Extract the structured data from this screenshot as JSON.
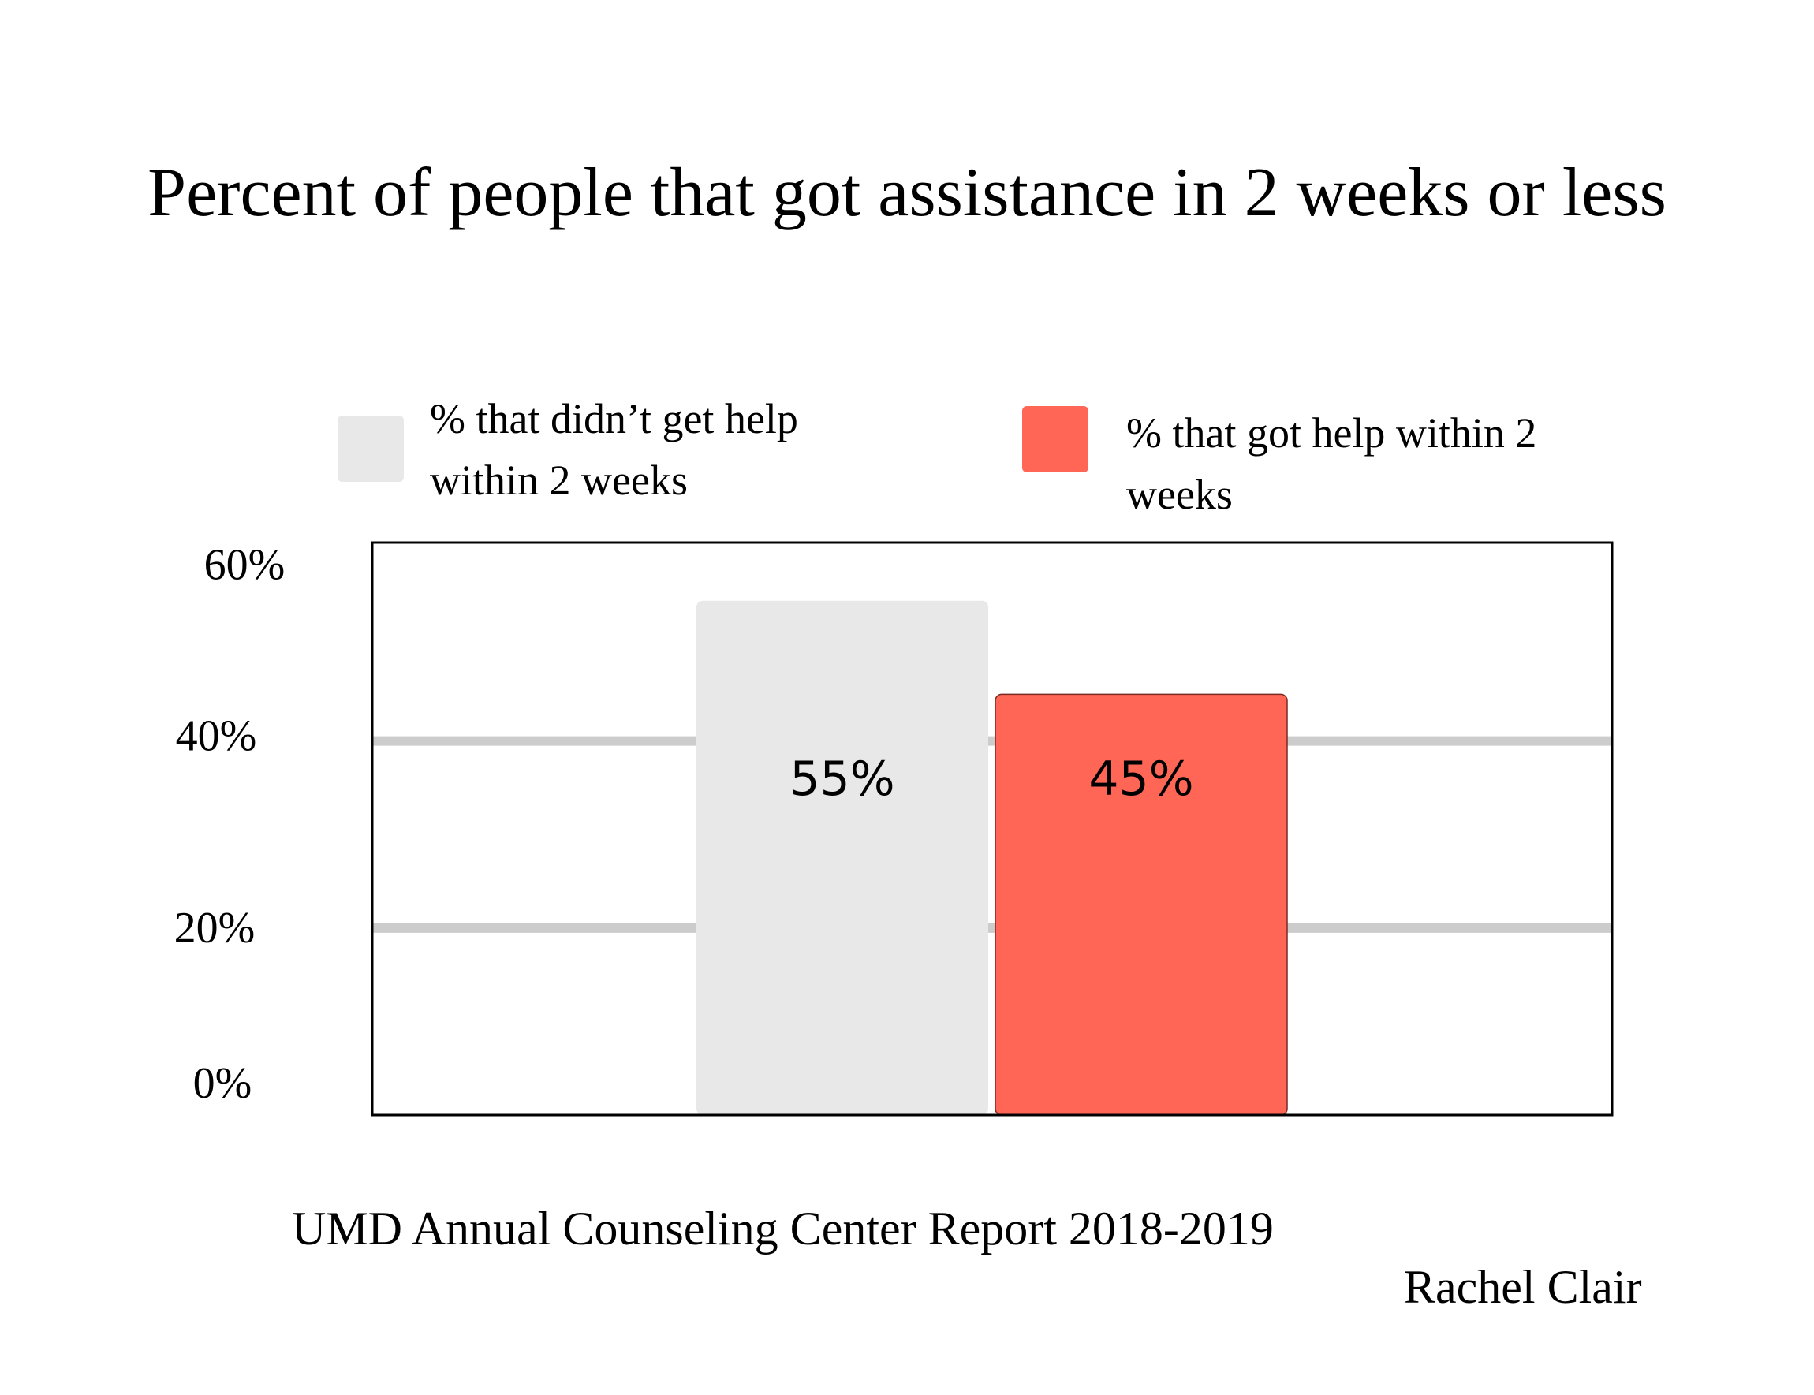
{
  "chart_data": {
    "type": "bar",
    "title": "Percent of people that got assistance in 2 weeks or less",
    "series": [
      {
        "name": "% that didn’t get help within 2 weeks",
        "value": 55,
        "label": "55%",
        "color": "#e8e8e8"
      },
      {
        "name": "% that got help within 2 weeks",
        "value": 45,
        "label": "45%",
        "color": "#ff6655"
      }
    ],
    "yticks": [
      {
        "value": 0,
        "label": "0%"
      },
      {
        "value": 20,
        "label": "20%"
      },
      {
        "value": 40,
        "label": "40%"
      },
      {
        "value": 60,
        "label": "60%"
      }
    ],
    "ylim": [
      0,
      60
    ],
    "gridlines": [
      20,
      40
    ],
    "legend_position": "top",
    "grid_color": "#cccccc"
  },
  "footer": {
    "source": "UMD Annual Counseling Center Report 2018-2019",
    "author": "Rachel Clair"
  }
}
